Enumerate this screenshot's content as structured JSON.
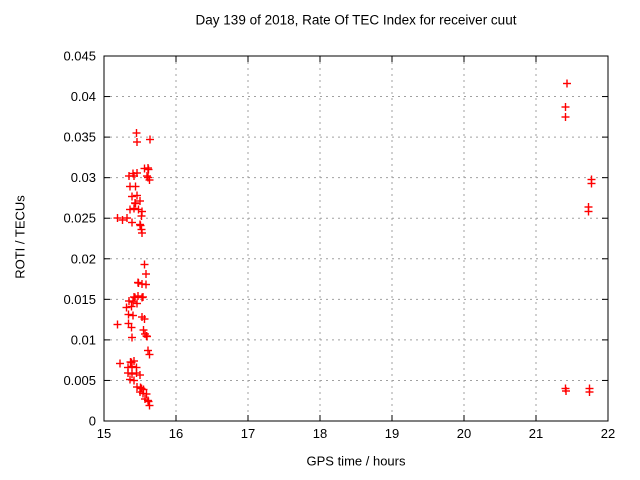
{
  "chart_data": {
    "type": "scatter",
    "title": "Day 139 of 2018, Rate Of TEC Index for receiver cuut",
    "xlabel": "GPS time / hours",
    "ylabel": "ROTI / TECUs",
    "xlim": [
      15,
      22
    ],
    "ylim": [
      0,
      0.045
    ],
    "x_tick_values": [
      15,
      16,
      17,
      18,
      19,
      20,
      21,
      22
    ],
    "x_tick_labels": [
      "15",
      "16",
      "17",
      "18",
      "19",
      "20",
      "21",
      "22"
    ],
    "y_tick_values": [
      0,
      0.005,
      0.01,
      0.015,
      0.02,
      0.025,
      0.03,
      0.035,
      0.04,
      0.045
    ],
    "y_tick_labels": [
      "0",
      "0.005",
      "0.01",
      "0.015",
      "0.02",
      "0.025",
      "0.03",
      "0.035",
      "0.04",
      "0.045"
    ],
    "grid": true,
    "legend_position": "none",
    "marker_shape": "plus",
    "marker_color": "#ff0000",
    "grid_color": "#a0a0a0",
    "axis_color": "#000000",
    "series": [
      {
        "name": "ROTI",
        "points": [
          [
            15.45,
            0.0355
          ],
          [
            15.46,
            0.0344
          ],
          [
            15.64,
            0.0347
          ],
          [
            15.56,
            0.0311
          ],
          [
            15.61,
            0.0312
          ],
          [
            15.62,
            0.031
          ],
          [
            15.4,
            0.0305
          ],
          [
            15.46,
            0.0306
          ],
          [
            15.35,
            0.0302
          ],
          [
            15.42,
            0.0302
          ],
          [
            15.6,
            0.0302
          ],
          [
            15.61,
            0.03
          ],
          [
            15.63,
            0.0297
          ],
          [
            15.36,
            0.0289
          ],
          [
            15.44,
            0.0289
          ],
          [
            15.39,
            0.0277
          ],
          [
            15.46,
            0.0278
          ],
          [
            15.43,
            0.0269
          ],
          [
            15.44,
            0.0268
          ],
          [
            15.5,
            0.0271
          ],
          [
            15.36,
            0.0261
          ],
          [
            15.42,
            0.0262
          ],
          [
            15.48,
            0.0261
          ],
          [
            15.53,
            0.0258
          ],
          [
            15.52,
            0.0253
          ],
          [
            15.19,
            0.025
          ],
          [
            15.26,
            0.0248
          ],
          [
            15.32,
            0.025
          ],
          [
            15.39,
            0.0245
          ],
          [
            15.5,
            0.0242
          ],
          [
            15.51,
            0.0241
          ],
          [
            15.52,
            0.0236
          ],
          [
            15.53,
            0.0232
          ],
          [
            15.56,
            0.0193
          ],
          [
            15.58,
            0.0181
          ],
          [
            15.47,
            0.0171
          ],
          [
            15.48,
            0.017
          ],
          [
            15.53,
            0.0169
          ],
          [
            15.58,
            0.0168
          ],
          [
            15.42,
            0.0153
          ],
          [
            15.47,
            0.0154
          ],
          [
            15.54,
            0.0153
          ],
          [
            15.43,
            0.0152
          ],
          [
            15.53,
            0.0152
          ],
          [
            15.35,
            0.0148
          ],
          [
            15.4,
            0.0147
          ],
          [
            15.46,
            0.0145
          ],
          [
            15.31,
            0.014
          ],
          [
            15.38,
            0.0141
          ],
          [
            15.34,
            0.0131
          ],
          [
            15.4,
            0.013
          ],
          [
            15.53,
            0.0128
          ],
          [
            15.56,
            0.0126
          ],
          [
            15.19,
            0.0119
          ],
          [
            15.34,
            0.012
          ],
          [
            15.38,
            0.0115
          ],
          [
            15.55,
            0.0112
          ],
          [
            15.57,
            0.0107
          ],
          [
            15.39,
            0.0103
          ],
          [
            15.59,
            0.0105
          ],
          [
            15.6,
            0.0104
          ],
          [
            15.61,
            0.0087
          ],
          [
            15.63,
            0.0082
          ],
          [
            15.22,
            0.0071
          ],
          [
            15.37,
            0.0073
          ],
          [
            15.38,
            0.0072
          ],
          [
            15.42,
            0.0074
          ],
          [
            15.33,
            0.0066
          ],
          [
            15.39,
            0.0067
          ],
          [
            15.45,
            0.0066
          ],
          [
            15.33,
            0.0059
          ],
          [
            15.39,
            0.0058
          ],
          [
            15.45,
            0.0059
          ],
          [
            15.5,
            0.0057
          ],
          [
            15.36,
            0.0051
          ],
          [
            15.42,
            0.005
          ],
          [
            15.46,
            0.0042
          ],
          [
            15.51,
            0.0041
          ],
          [
            15.52,
            0.004
          ],
          [
            15.55,
            0.0039
          ],
          [
            15.5,
            0.0036
          ],
          [
            15.54,
            0.0034
          ],
          [
            15.59,
            0.0033
          ],
          [
            15.57,
            0.0027
          ],
          [
            15.61,
            0.0025
          ],
          [
            15.62,
            0.0024
          ],
          [
            15.63,
            0.0019
          ],
          [
            21.43,
            0.0416
          ],
          [
            21.41,
            0.0387
          ],
          [
            21.41,
            0.0375
          ],
          [
            21.77,
            0.0298
          ],
          [
            21.77,
            0.0293
          ],
          [
            21.73,
            0.0264
          ],
          [
            21.73,
            0.0258
          ],
          [
            21.41,
            0.004
          ],
          [
            21.42,
            0.0037
          ],
          [
            21.74,
            0.004
          ],
          [
            21.74,
            0.0036
          ]
        ]
      }
    ]
  }
}
